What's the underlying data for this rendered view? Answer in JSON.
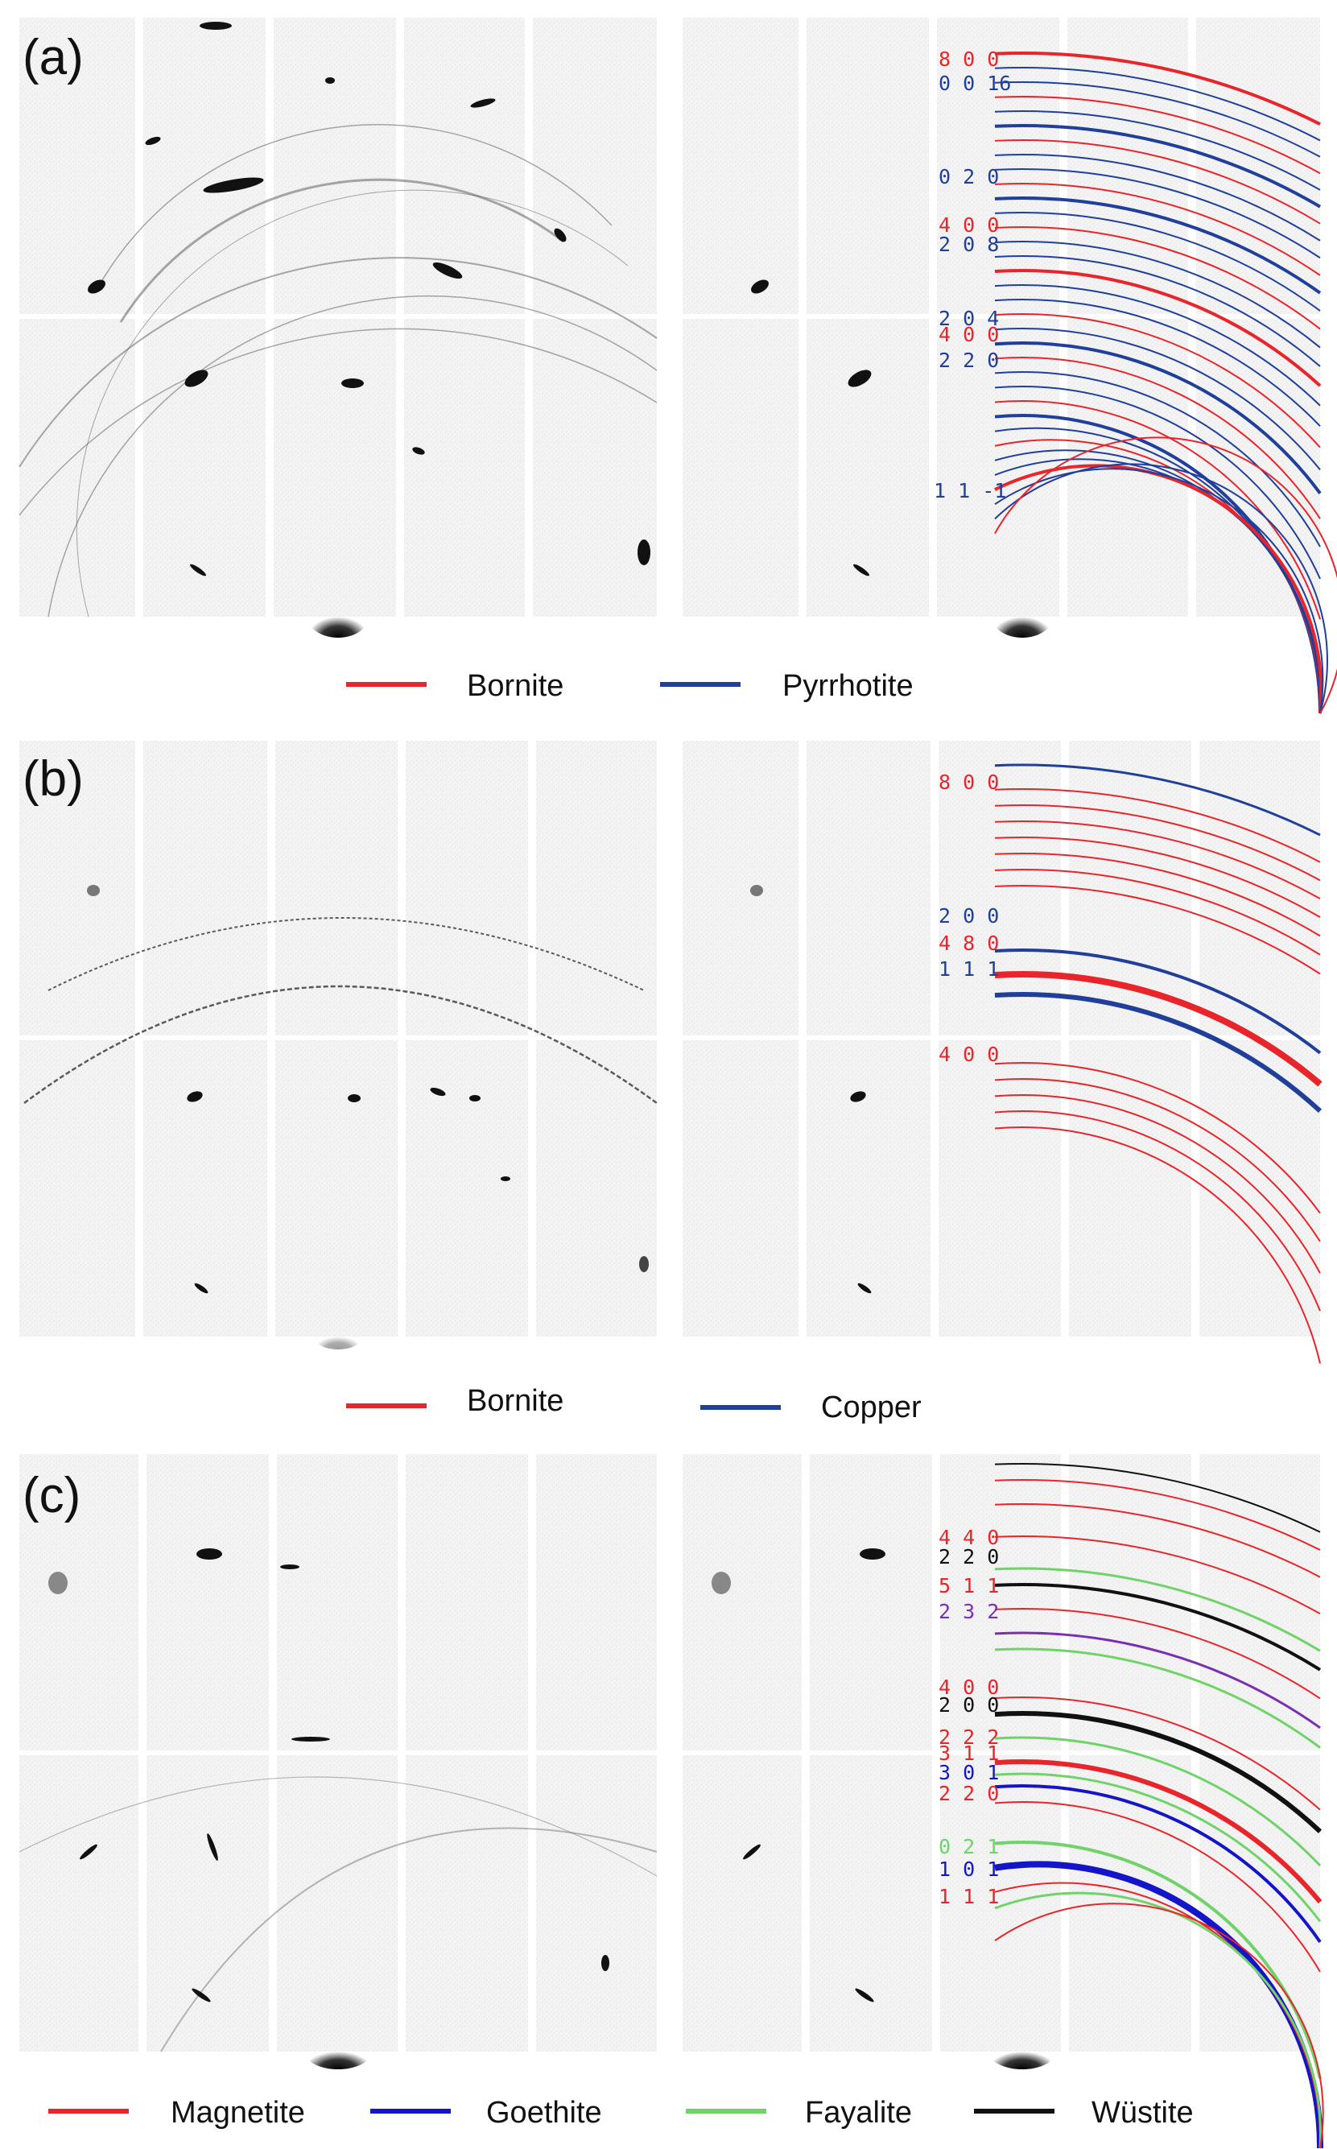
{
  "panels": [
    {
      "id": "a",
      "label": "(a)",
      "legend": [
        {
          "name": "Bornite",
          "color": "#e8252a"
        },
        {
          "name": "Pyrrhotite",
          "color": "#1f3f9a"
        }
      ],
      "hkl_labels": [
        {
          "text": "8 0 0",
          "color": "#e8252a"
        },
        {
          "text": "0 0 16",
          "color": "#1f3f9a"
        },
        {
          "text": "0 2 0",
          "color": "#1f3f9a"
        },
        {
          "text": "4 0 0",
          "color": "#e8252a"
        },
        {
          "text": "2 0 8",
          "color": "#1f3f9a"
        },
        {
          "text": "2 0 4",
          "color": "#1f3f9a"
        },
        {
          "text": "4 0 0",
          "color": "#e8252a"
        },
        {
          "text": "2 2 0",
          "color": "#1f3f9a"
        },
        {
          "text": "1 1 -1",
          "color": "#1f3f9a"
        }
      ]
    },
    {
      "id": "b",
      "label": "(b)",
      "legend": [
        {
          "name": "Bornite",
          "color": "#e8252a"
        },
        {
          "name": "Copper",
          "color": "#1f3f9a"
        }
      ],
      "hkl_labels": [
        {
          "text": "8 0 0",
          "color": "#e8252a"
        },
        {
          "text": "2 0 0",
          "color": "#1f3f9a"
        },
        {
          "text": "4 8 0",
          "color": "#e8252a"
        },
        {
          "text": "1 1 1",
          "color": "#1f3f9a"
        },
        {
          "text": "4 0 0",
          "color": "#e8252a"
        }
      ]
    },
    {
      "id": "c",
      "label": "(c)",
      "legend": [
        {
          "name": "Magnetite",
          "color": "#e8252a"
        },
        {
          "name": "Goethite",
          "color": "#1515c8"
        },
        {
          "name": "Fayalite",
          "color": "#6fd36a"
        },
        {
          "name": "Wüstite",
          "color": "#111111"
        }
      ],
      "hkl_labels": [
        {
          "text": "4 4 0",
          "color": "#e8252a"
        },
        {
          "text": "2 2 0",
          "color": "#111111"
        },
        {
          "text": "5 1 1",
          "color": "#e8252a"
        },
        {
          "text": "2 3 2",
          "color": "#7a2fb0"
        },
        {
          "text": "4 0 0",
          "color": "#e8252a"
        },
        {
          "text": "2 0 0",
          "color": "#111111"
        },
        {
          "text": "2 2 2",
          "color": "#e8252a"
        },
        {
          "text": "3 1 1",
          "color": "#e8252a"
        },
        {
          "text": "3 0 1",
          "color": "#1515c8"
        },
        {
          "text": "2 2 0",
          "color": "#e8252a"
        },
        {
          "text": "0 2 1",
          "color": "#6fd36a"
        },
        {
          "text": "1 0 1",
          "color": "#1515c8"
        },
        {
          "text": "1 1 1",
          "color": "#e8252a"
        }
      ]
    }
  ]
}
